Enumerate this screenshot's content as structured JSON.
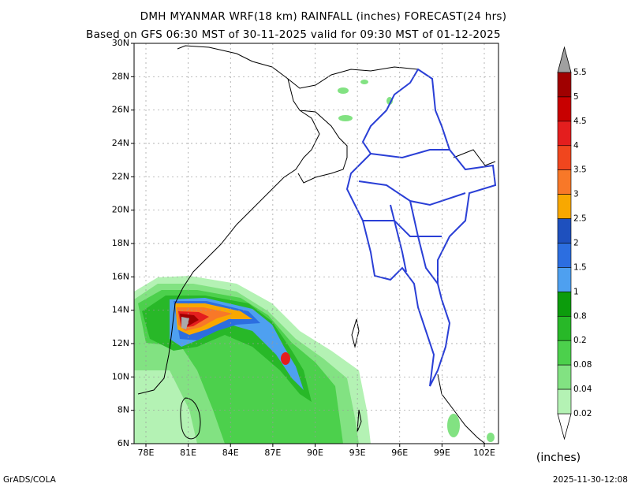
{
  "header": {
    "title": "DMH MYANMAR WRF(18 km) RAINFALL (inches) FORECAST(24 hrs)",
    "subtitle": "Based on GFS 06:30 MST of 30-11-2025 valid for 09:30 MST of 01-12-2025"
  },
  "map": {
    "lat_labels": [
      "30N",
      "28N",
      "26N",
      "24N",
      "22N",
      "20N",
      "18N",
      "16N",
      "14N",
      "12N",
      "10N",
      "8N",
      "6N"
    ],
    "lon_labels": [
      "78E",
      "81E",
      "84E",
      "87E",
      "90E",
      "93E",
      "96E",
      "99E",
      "102E"
    ]
  },
  "colorbar": {
    "levels": [
      "5.5",
      "5",
      "4.5",
      "4",
      "3.5",
      "3",
      "2.5",
      "2",
      "1.5",
      "1",
      "0.8",
      "0.2",
      "0.08",
      "0.04",
      "0.02"
    ],
    "colors": [
      "#a00000",
      "#c80000",
      "#e41e1e",
      "#f0461e",
      "#f87828",
      "#f8a800",
      "#1e50be",
      "#2c6ee0",
      "#4ea0f0",
      "#0c9c0c",
      "#28b828",
      "#4cd04c",
      "#82e282",
      "#b4f2b4"
    ],
    "unit": "(inches)"
  },
  "footer": {
    "left": "GrADS/COLA",
    "right": "2025-11-30-12:08"
  }
}
